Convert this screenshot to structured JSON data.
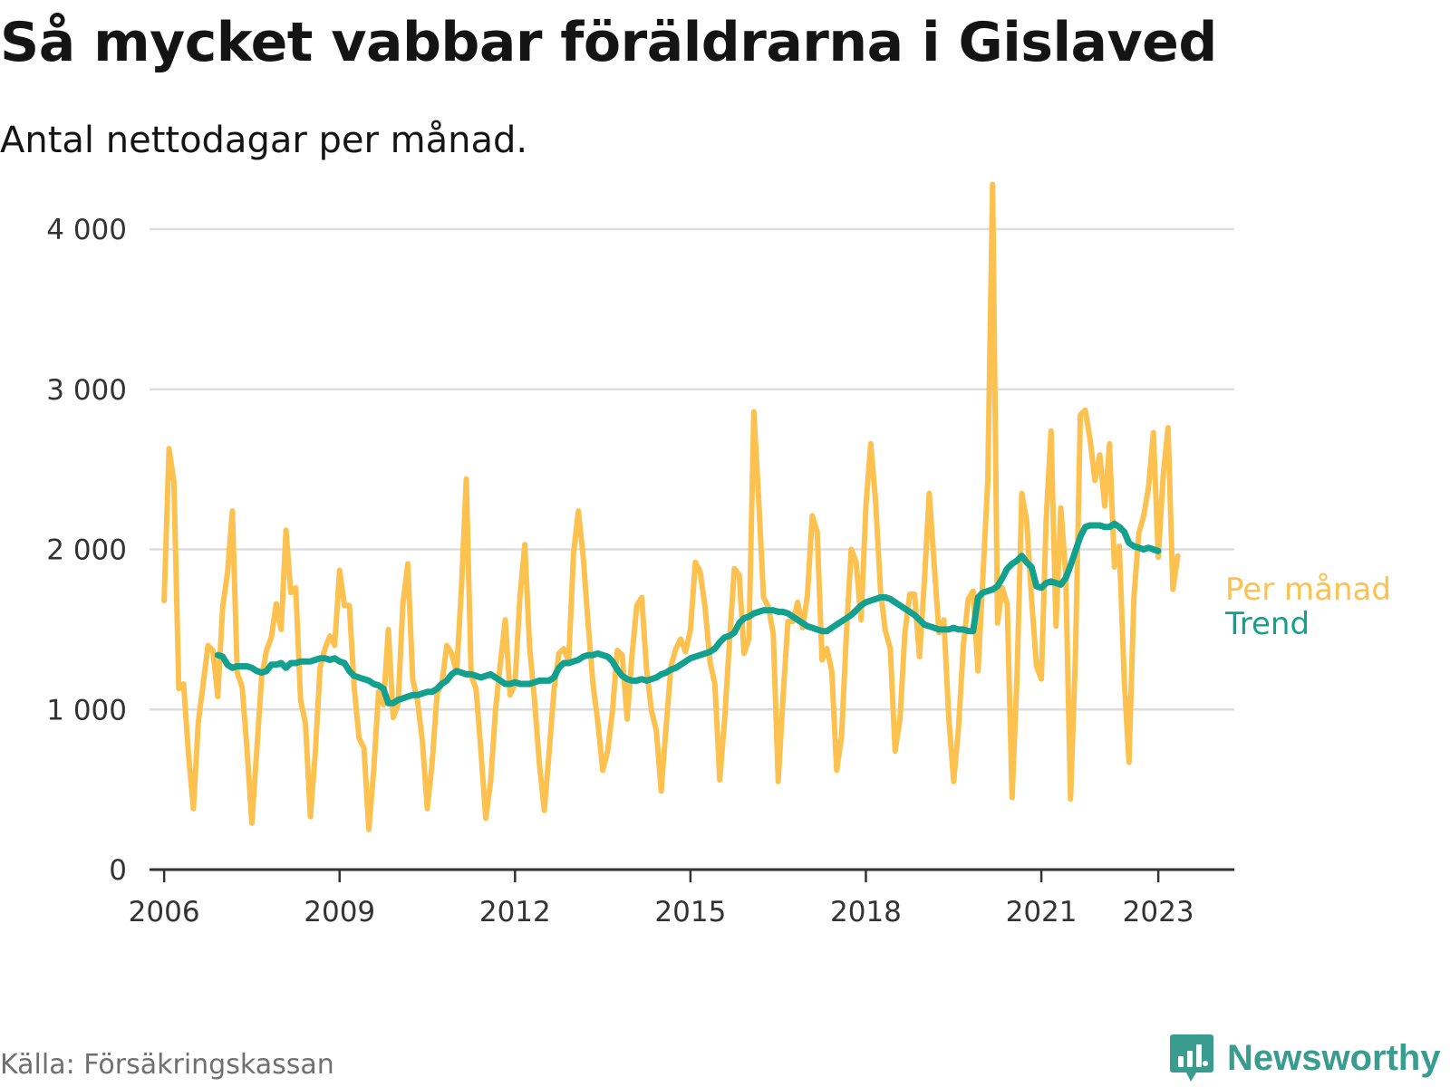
{
  "title": "Så mycket vabbar föräldrarna i Gislaved",
  "subtitle": "Antal nettodagar per månad.",
  "source": "Källa: Försäkringskassan",
  "brand": {
    "name": "Newsworthy",
    "icon": "newsworthy-logo-icon",
    "color": "#3a9c8f"
  },
  "chart_data": {
    "type": "line",
    "xlabel": "",
    "ylabel": "",
    "ylim": [
      0,
      4300
    ],
    "xlim": [
      2005.75,
      2024.3
    ],
    "yticks": [
      0,
      1000,
      2000,
      3000,
      4000
    ],
    "ytick_labels": [
      "0",
      "1 000",
      "2 000",
      "3 000",
      "4 000"
    ],
    "xticks": [
      2006,
      2009,
      2012,
      2015,
      2018,
      2021,
      2023
    ],
    "xtick_labels": [
      "2006",
      "2009",
      "2012",
      "2015",
      "2018",
      "2021",
      "2023"
    ],
    "grid": true,
    "legend": "end-of-line labels",
    "series": [
      {
        "name": "Per månad",
        "color": "#fcc14f",
        "start": "2006-01",
        "values": [
          1680,
          2630,
          2420,
          1130,
          1160,
          720,
          380,
          920,
          1160,
          1400,
          1370,
          1080,
          1640,
          1850,
          2240,
          1230,
          1140,
          760,
          290,
          740,
          1200,
          1370,
          1450,
          1660,
          1500,
          2120,
          1730,
          1760,
          1060,
          910,
          330,
          720,
          1260,
          1380,
          1460,
          1400,
          1870,
          1650,
          1650,
          1140,
          820,
          760,
          250,
          620,
          1110,
          1030,
          1500,
          950,
          1030,
          1660,
          1910,
          1190,
          1050,
          800,
          380,
          670,
          1100,
          1160,
          1400,
          1350,
          1230,
          1760,
          2440,
          1210,
          1130,
          740,
          320,
          550,
          1000,
          1290,
          1560,
          1090,
          1160,
          1700,
          2030,
          1390,
          1060,
          660,
          370,
          730,
          1120,
          1350,
          1380,
          1300,
          1970,
          2240,
          1950,
          1530,
          1160,
          920,
          620,
          740,
          990,
          1370,
          1340,
          940,
          1340,
          1650,
          1700,
          1250,
          990,
          870,
          490,
          890,
          1270,
          1380,
          1440,
          1360,
          1500,
          1920,
          1860,
          1640,
          1300,
          1160,
          560,
          930,
          1420,
          1880,
          1840,
          1350,
          1440,
          2860,
          2310,
          1700,
          1640,
          1470,
          550,
          1080,
          1550,
          1550,
          1670,
          1510,
          1710,
          2210,
          2110,
          1310,
          1380,
          1240,
          620,
          830,
          1480,
          2000,
          1920,
          1560,
          2270,
          2660,
          2300,
          1740,
          1490,
          1380,
          740,
          940,
          1480,
          1720,
          1720,
          1330,
          1800,
          2350,
          1910,
          1480,
          1560,
          950,
          550,
          880,
          1400,
          1690,
          1740,
          1240,
          1820,
          2420,
          4280,
          1540,
          1760,
          1660,
          450,
          1200,
          2350,
          2180,
          1690,
          1270,
          1190,
          2190,
          2740,
          1520,
          2260,
          1850,
          440,
          1340,
          2840,
          2870,
          2690,
          2430,
          2590,
          2270,
          2660,
          1890,
          2020,
          1190,
          670,
          1700,
          2100,
          2210,
          2390,
          2730,
          1950,
          2460,
          2760,
          1750,
          1960
        ]
      },
      {
        "name": "Trend",
        "color": "#14a08f",
        "start": "2006-12",
        "values": [
          1340,
          1330,
          1280,
          1260,
          1270,
          1270,
          1270,
          1260,
          1240,
          1230,
          1240,
          1280,
          1280,
          1290,
          1260,
          1290,
          1290,
          1300,
          1300,
          1300,
          1310,
          1320,
          1320,
          1310,
          1320,
          1300,
          1290,
          1240,
          1210,
          1200,
          1190,
          1180,
          1160,
          1150,
          1130,
          1040,
          1040,
          1060,
          1070,
          1080,
          1090,
          1090,
          1100,
          1110,
          1110,
          1130,
          1160,
          1180,
          1220,
          1240,
          1230,
          1220,
          1220,
          1210,
          1200,
          1210,
          1220,
          1200,
          1180,
          1160,
          1160,
          1170,
          1160,
          1160,
          1160,
          1170,
          1180,
          1180,
          1180,
          1200,
          1260,
          1290,
          1290,
          1300,
          1310,
          1330,
          1340,
          1340,
          1350,
          1340,
          1330,
          1300,
          1250,
          1210,
          1190,
          1180,
          1180,
          1190,
          1180,
          1190,
          1200,
          1220,
          1230,
          1250,
          1260,
          1280,
          1300,
          1320,
          1330,
          1340,
          1350,
          1360,
          1380,
          1420,
          1450,
          1460,
          1480,
          1540,
          1570,
          1580,
          1600,
          1610,
          1620,
          1620,
          1620,
          1610,
          1610,
          1600,
          1580,
          1560,
          1540,
          1520,
          1510,
          1500,
          1490,
          1490,
          1510,
          1530,
          1550,
          1570,
          1590,
          1620,
          1650,
          1670,
          1680,
          1690,
          1700,
          1700,
          1690,
          1670,
          1650,
          1630,
          1610,
          1590,
          1560,
          1530,
          1520,
          1510,
          1500,
          1500,
          1500,
          1510,
          1500,
          1500,
          1490,
          1490,
          1700,
          1730,
          1740,
          1750,
          1770,
          1820,
          1880,
          1910,
          1930,
          1960,
          1920,
          1890,
          1770,
          1760,
          1790,
          1800,
          1790,
          1780,
          1820,
          1900,
          1990,
          2080,
          2140,
          2150,
          2150,
          2150,
          2140,
          2140,
          2160,
          2140,
          2110,
          2040,
          2020,
          2010,
          2000,
          2010,
          2000,
          1990
        ]
      }
    ]
  }
}
